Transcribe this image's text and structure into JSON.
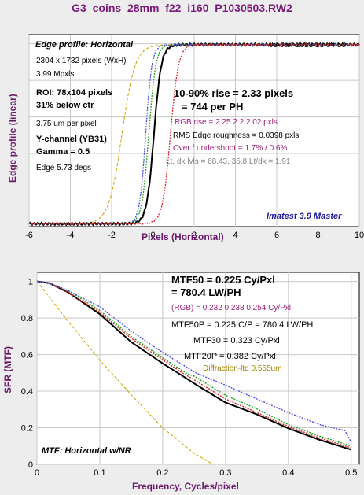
{
  "window": {
    "title": "G3_coins_28mm_f22_i160_P1030503.RW2"
  },
  "colors": {
    "red": "#e02020",
    "green": "#20a020",
    "blue": "#5050e0",
    "black": "#000000",
    "diffraction": "#c8a000",
    "label": "#6a1a6a",
    "magenta": "#a0207a",
    "navy": "#1a1aa0"
  },
  "edge_panel": {
    "label": "Edge profile: Horizontal",
    "date": "03-Jan-2013 13:04:50",
    "info": [
      "2304 x 1732 pixels (WxH)",
      "3.99 Mpxls"
    ],
    "roi": [
      "ROI:  78x104 pixels",
      "31% below ctr"
    ],
    "pixel_size": "3.75 um per pixel",
    "channel": [
      "Y-channel  (YB31)",
      "Gamma = 0.5"
    ],
    "edge_angle": "Edge 5.73 degs",
    "rise_line1": "10-90% rise = 2.33 pixels",
    "rise_line2": "= 744 per PH",
    "rgb_rise": "RGB rise = 2.25  2.2  2.02 pxls",
    "rms": "RMS Edge roughness = 0.0398 pxls",
    "overshoot": "Over / undershoot = 1.7% / 0.6%",
    "levels": "Lt, dk lvls = 68.43, 35.8   Lt/dk = 1.91",
    "brand": "Imatest 3.9 Master"
  },
  "mtf_panel": {
    "label": "MTF: Horizontal w/NR",
    "mtf50_line1": "MTF50 = 0.225 Cy/Pxl",
    "mtf50_line2": "= 780.4 LW/PH",
    "rgb": "(RGB) = 0.232  0.238  0.254 Cy/Pxl",
    "mtf50p": "MTF50P = 0.225 C/P = 780.4 LW/PH",
    "mtf30": "MTF30 = 0.323 Cy/Pxl",
    "mtf20p": "MTF20P = 0.382 Cy/Pxl",
    "diffraction": "Diffraction-ltd  0.555um"
  },
  "chart_data": [
    {
      "type": "line",
      "title": "Edge profile: Horizontal",
      "xlabel": "Pixels (Horizontal)",
      "ylabel": "Edge profile (linear)",
      "xlim": [
        -6,
        10
      ],
      "ylim": [
        0,
        1.05
      ],
      "xticks": [
        -6,
        -4,
        -2,
        0,
        2,
        4,
        6,
        8,
        10
      ],
      "grid": true,
      "series": [
        {
          "color": "black",
          "center": 0.05,
          "width": 0.78
        },
        {
          "color": "green",
          "center": -0.2,
          "width": 0.74
        },
        {
          "color": "blue",
          "center": -0.35,
          "width": 0.66
        },
        {
          "color": "red",
          "center": 0.85,
          "width": 0.85
        }
      ],
      "diffraction_center": -1.5,
      "diffraction_width": 1.4
    },
    {
      "type": "line",
      "title": "MTF: Horizontal w/NR",
      "xlabel": "Frequency, Cycles/pixel",
      "ylabel": "SFR (MTF)",
      "xlim": [
        0,
        0.5
      ],
      "ylim": [
        0,
        1.05
      ],
      "xticks": [
        0,
        0.1,
        0.2,
        0.3,
        0.4,
        0.5
      ],
      "yticks": [
        0,
        0.2,
        0.4,
        0.6,
        0.8,
        1
      ],
      "grid": true,
      "series": [
        {
          "color": "black",
          "x": [
            0,
            0.02,
            0.05,
            0.1,
            0.15,
            0.2,
            0.225,
            0.25,
            0.3,
            0.35,
            0.4,
            0.45,
            0.5
          ],
          "y": [
            1,
            0.99,
            0.94,
            0.82,
            0.67,
            0.55,
            0.5,
            0.44,
            0.34,
            0.27,
            0.2,
            0.13,
            0.08
          ]
        },
        {
          "color": "green",
          "x": [
            0,
            0.02,
            0.05,
            0.1,
            0.15,
            0.2,
            0.238,
            0.25,
            0.3,
            0.35,
            0.4,
            0.45,
            0.5
          ],
          "y": [
            1,
            0.99,
            0.95,
            0.84,
            0.7,
            0.58,
            0.5,
            0.48,
            0.38,
            0.3,
            0.22,
            0.15,
            0.1
          ]
        },
        {
          "color": "red",
          "x": [
            0,
            0.02,
            0.05,
            0.1,
            0.15,
            0.2,
            0.232,
            0.25,
            0.3,
            0.35,
            0.4,
            0.45,
            0.5
          ],
          "y": [
            1,
            0.99,
            0.94,
            0.83,
            0.69,
            0.57,
            0.5,
            0.46,
            0.36,
            0.28,
            0.21,
            0.14,
            0.09
          ]
        },
        {
          "color": "blue",
          "x": [
            0,
            0.02,
            0.05,
            0.1,
            0.15,
            0.2,
            0.254,
            0.3,
            0.35,
            0.4,
            0.45,
            0.49,
            0.5
          ],
          "y": [
            1,
            0.99,
            0.95,
            0.86,
            0.73,
            0.61,
            0.5,
            0.43,
            0.36,
            0.28,
            0.22,
            0.18,
            0.12
          ]
        },
        {
          "color": "diffraction",
          "x": [
            0,
            0.05,
            0.1,
            0.15,
            0.2,
            0.25,
            0.28
          ],
          "y": [
            1,
            0.78,
            0.57,
            0.38,
            0.2,
            0.06,
            0
          ]
        }
      ]
    }
  ]
}
